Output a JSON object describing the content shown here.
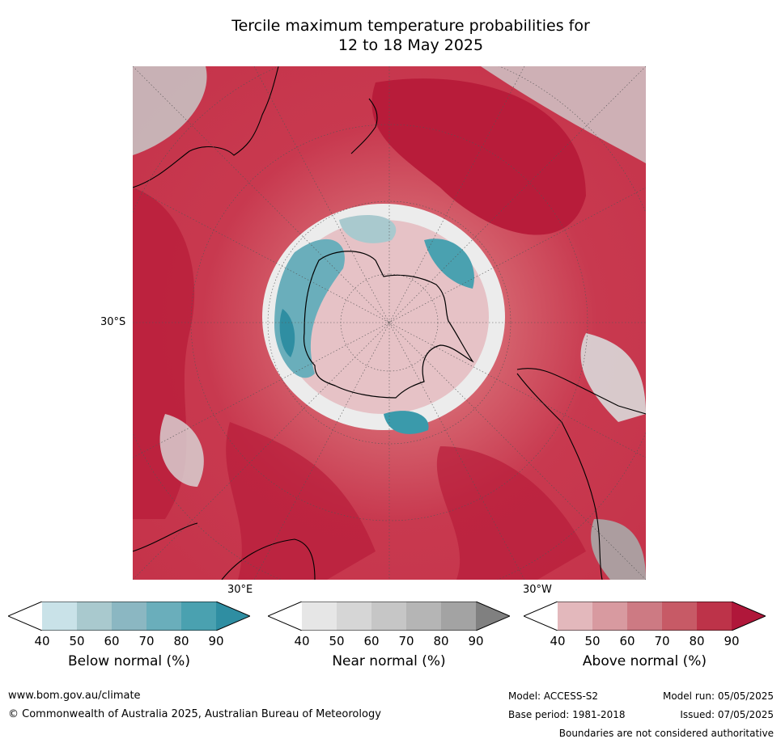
{
  "title": {
    "line1": "Tercile maximum temperature probabilities for",
    "line2": "12 to 18 May 2025"
  },
  "map": {
    "projection": "south-polar-stereographic",
    "lat_label": "30°S",
    "lon_labels": [
      "30°E",
      "30°W"
    ],
    "colors": {
      "above_dark": "#b81c3a",
      "above_mid": "#d4606c",
      "above_light": "#e3a6ad",
      "near": "#d9d9d9",
      "below_light": "#c9e2e8",
      "below_dark": "#3a9aab"
    }
  },
  "colorbars": [
    {
      "title": "Below normal (%)",
      "ticks": [
        "40",
        "50",
        "60",
        "70",
        "80",
        "90"
      ],
      "colors": [
        "#ffffff",
        "#c9e2e8",
        "#a9c9ce",
        "#8bb7c2",
        "#6aaebb",
        "#4aa1b0",
        "#2f8ea2"
      ]
    },
    {
      "title": "Near normal (%)",
      "ticks": [
        "40",
        "50",
        "60",
        "70",
        "80",
        "90"
      ],
      "colors": [
        "#ffffff",
        "#e6e6e6",
        "#d6d6d6",
        "#c6c6c6",
        "#b5b5b5",
        "#a3a3a3",
        "#808080"
      ]
    },
    {
      "title": "Above normal (%)",
      "ticks": [
        "40",
        "50",
        "60",
        "70",
        "80",
        "90"
      ],
      "colors": [
        "#ffffff",
        "#e3b8bc",
        "#d89aa0",
        "#cd7a83",
        "#c75a66",
        "#bd3349",
        "#b0173a"
      ]
    }
  ],
  "footer": {
    "url": "www.bom.gov.au/climate",
    "copyright": "© Commonwealth of Australia 2025, Australian Bureau of Meteorology",
    "model": "Model: ACCESS-S2",
    "base_period": "Base period: 1981-2018",
    "model_run": "Model run: 05/05/2025",
    "issued": "Issued: 07/05/2025",
    "disclaimer": "Boundaries are not considered authoritative"
  }
}
